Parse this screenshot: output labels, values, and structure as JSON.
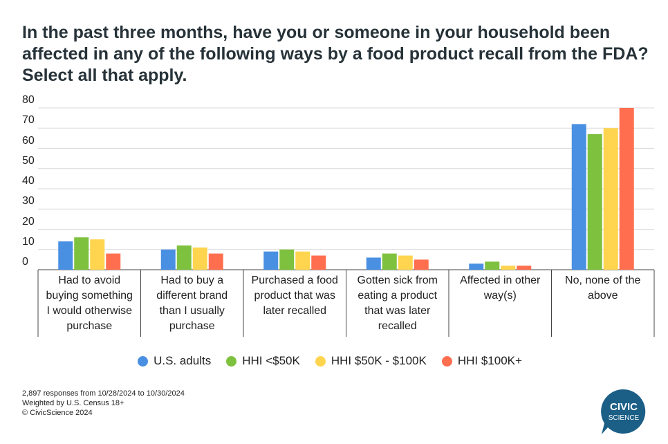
{
  "title": "In the past three months, have you or someone in your household been affected in any of the following ways by a food product recall from the FDA? Select all that apply.",
  "chart_data": {
    "type": "bar",
    "title": "In the past three months, have you or someone in your household been affected in any of the following ways by a food product recall from the FDA? Select all that apply.",
    "categories": [
      [
        "Had to avoid",
        "buying something",
        "I would otherwise",
        "purchase"
      ],
      [
        "Had to buy a",
        "different brand",
        "than I usually",
        "purchase"
      ],
      [
        "Purchased a food",
        "product that was",
        "later recalled"
      ],
      [
        "Gotten sick from",
        "eating a product",
        "that was later",
        "recalled"
      ],
      [
        "Affected in other",
        "way(s)"
      ],
      [
        "No, none of the",
        "above"
      ]
    ],
    "series": [
      {
        "name": "U.S. adults",
        "color": "#4a90e2",
        "values": [
          14,
          10,
          9,
          6,
          3,
          72
        ]
      },
      {
        "name": "HHI <$50K",
        "color": "#7ec13e",
        "values": [
          16,
          12,
          10,
          8,
          4,
          67
        ]
      },
      {
        "name": "HHI $50K - $100K",
        "color": "#ffd54f",
        "values": [
          15,
          11,
          9,
          7,
          2,
          70
        ]
      },
      {
        "name": "HHI $100K+",
        "color": "#ff6f4f",
        "values": [
          8,
          8,
          7,
          5,
          2,
          80
        ]
      }
    ],
    "yticks": [
      0,
      10,
      20,
      30,
      40,
      50,
      60,
      70,
      80
    ],
    "ylim": [
      0,
      80
    ],
    "grid": true,
    "legend": "bottom-center"
  },
  "footer": {
    "line1": "2,897 responses from 10/28/2024 to 10/30/2024",
    "line2": "Weighted by U.S. Census 18+",
    "line3": "© CivicScience 2024"
  },
  "logo": {
    "line1": "CIVIC",
    "line2": "SCIENCE",
    "color": "#1b5e86"
  }
}
